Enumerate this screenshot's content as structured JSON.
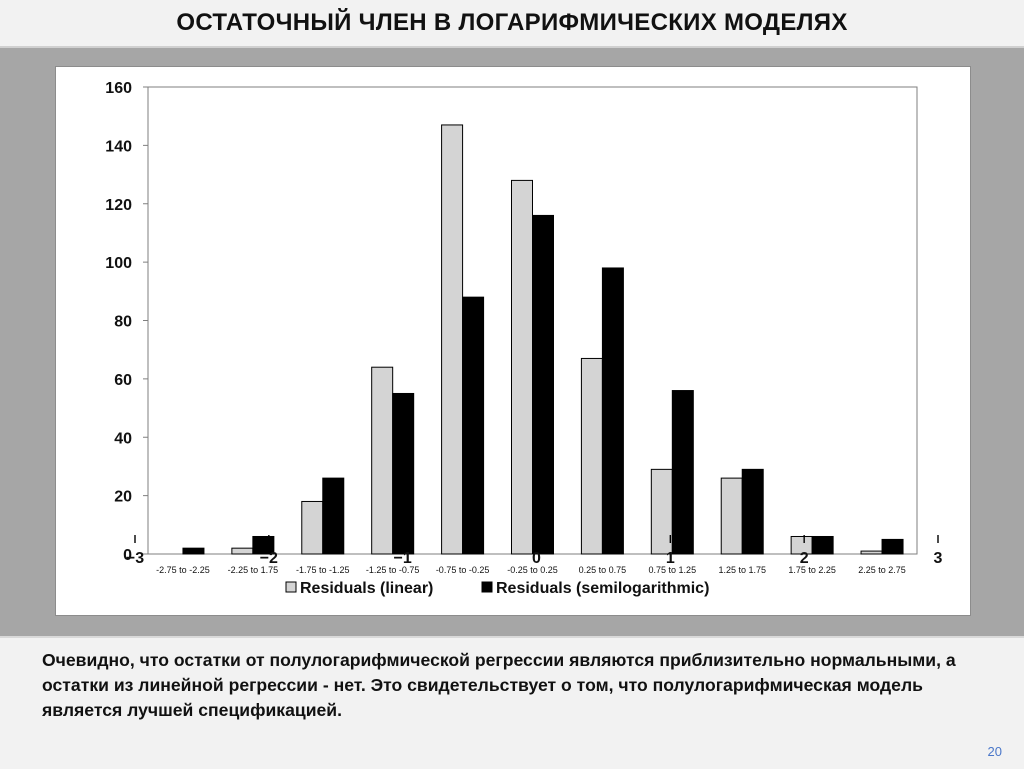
{
  "header": {
    "title": "ОСТАТОЧНЫЙ ЧЛЕН В ЛОГАРИФМИЧЕСКИХ МОДЕЛЯХ"
  },
  "footer": {
    "text": "Очевидно, что остатки от полулогарифмической регрессии являются приблизительно нормальными, а остатки из линейной регрессии - нет.  Это свидетельствует о том, что полулогарифмическая модель является лучшей спецификацией.",
    "page_number": "20"
  },
  "chart_data": {
    "type": "bar",
    "categories": [
      "-2.75 to -2.25",
      "-2.25 to 1.75",
      "-1.75 to -1.25",
      "-1.25 to -0.75",
      "-0.75 to -0.25",
      "-0.25 to 0.25",
      "0.25 to 0.75",
      "0.75 to 1.25",
      "1.25 to 1.75",
      "1.75 to 2.25",
      "2.25 to 2.75"
    ],
    "series": [
      {
        "name": "Residuals (linear)",
        "color": "#d4d4d4",
        "values": [
          0,
          2,
          18,
          64,
          147,
          128,
          67,
          29,
          26,
          6,
          1
        ]
      },
      {
        "name": "Residuals (semilogarithmic)",
        "color": "#000000",
        "values": [
          2,
          6,
          26,
          55,
          88,
          116,
          98,
          56,
          29,
          6,
          5
        ]
      }
    ],
    "ylim": [
      0,
      160
    ],
    "yticks": [
      0,
      20,
      40,
      60,
      80,
      100,
      120,
      140,
      160
    ],
    "overlay_x_ticks": [
      {
        "value": -3,
        "label": "−3"
      },
      {
        "value": -2,
        "label": "−2"
      },
      {
        "value": -1,
        "label": "−1"
      },
      {
        "value": 0,
        "label": "0"
      },
      {
        "value": 1,
        "label": "1"
      },
      {
        "value": 2,
        "label": "2"
      },
      {
        "value": 3,
        "label": "3"
      }
    ],
    "legend": "bottom",
    "grid": false
  }
}
